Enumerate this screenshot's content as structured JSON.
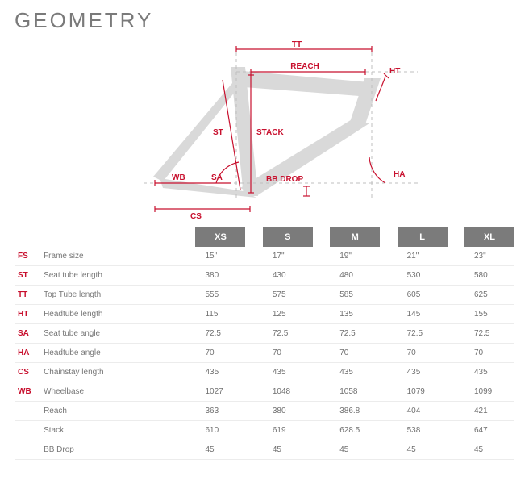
{
  "title": "GEOMETRY",
  "diagram": {
    "type": "schematic",
    "frame_color": "#d9d9d9",
    "label_color": "#c8102e",
    "dim_line_color": "#c8102e",
    "dash_color": "#bfbfbf",
    "labels": {
      "tt": "TT",
      "reach": "REACH",
      "ht": "HT",
      "st": "ST",
      "stack": "STACK",
      "wb": "WB",
      "sa": "SA",
      "bb_drop": "BB DROP",
      "ha": "HA",
      "cs": "CS"
    }
  },
  "table": {
    "sizes": [
      "XS",
      "S",
      "M",
      "L",
      "XL"
    ],
    "rows": [
      {
        "abbr": "FS",
        "label": "Frame size",
        "values": [
          "15\"",
          "17\"",
          "19\"",
          "21\"",
          "23\""
        ]
      },
      {
        "abbr": "ST",
        "label": "Seat tube length",
        "values": [
          "380",
          "430",
          "480",
          "530",
          "580"
        ]
      },
      {
        "abbr": "TT",
        "label": "Top Tube length",
        "values": [
          "555",
          "575",
          "585",
          "605",
          "625"
        ]
      },
      {
        "abbr": "HT",
        "label": "Headtube length",
        "values": [
          "115",
          "125",
          "135",
          "145",
          "155"
        ]
      },
      {
        "abbr": "SA",
        "label": "Seat tube angle",
        "values": [
          "72.5",
          "72.5",
          "72.5",
          "72.5",
          "72.5"
        ]
      },
      {
        "abbr": "HA",
        "label": "Headtube angle",
        "values": [
          "70",
          "70",
          "70",
          "70",
          "70"
        ]
      },
      {
        "abbr": "CS",
        "label": "Chainstay length",
        "values": [
          "435",
          "435",
          "435",
          "435",
          "435"
        ]
      },
      {
        "abbr": "WB",
        "label": "Wheelbase",
        "values": [
          "1027",
          "1048",
          "1058",
          "1079",
          "1099"
        ]
      },
      {
        "abbr": "",
        "label": "Reach",
        "values": [
          "363",
          "380",
          "386.8",
          "404",
          "421"
        ]
      },
      {
        "abbr": "",
        "label": "Stack",
        "values": [
          "610",
          "619",
          "628.5",
          "538",
          "647"
        ]
      },
      {
        "abbr": "",
        "label": "BB Drop",
        "values": [
          "45",
          "45",
          "45",
          "45",
          "45"
        ]
      }
    ],
    "header_bg": "#7b7b7b",
    "header_fg": "#ffffff",
    "abbr_color": "#c8102e",
    "text_color": "#6b6b6b",
    "row_border": "#ececec"
  }
}
